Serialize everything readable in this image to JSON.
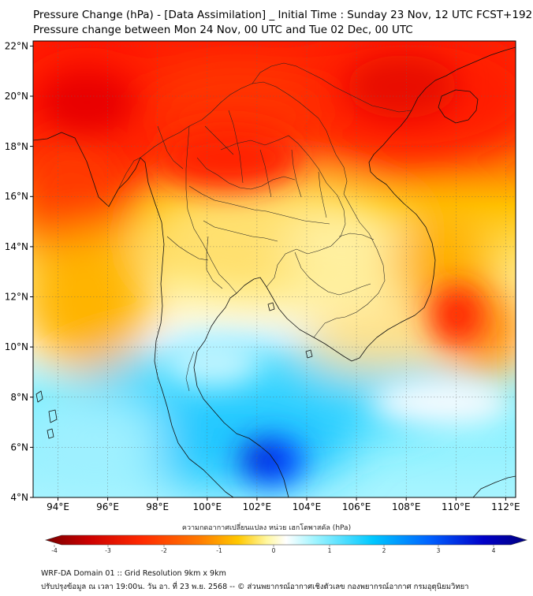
{
  "header": {
    "title": "Pressure Change (hPa) - [Data Assimilation] _ Initial Time : Sunday 23 Nov, 12 UTC FCST+192",
    "subtitle": "Pressure change between Mon 24 Nov, 00 UTC and Tue 02 Dec, 00 UTC"
  },
  "map": {
    "lat_ticks": [
      "22°N",
      "20°N",
      "18°N",
      "16°N",
      "14°N",
      "12°N",
      "10°N",
      "8°N",
      "6°N",
      "4°N"
    ],
    "lon_ticks": [
      "94°E",
      "96°E",
      "98°E",
      "100°E",
      "102°E",
      "104°E",
      "106°E",
      "108°E",
      "110°E",
      "112°E"
    ],
    "lat_range": [
      4,
      22.2
    ],
    "lon_range": [
      93,
      112.4
    ]
  },
  "colorbar": {
    "label": "ความกดอากาศเปลี่ยนแปลง หน่วย เฮกโตพาสคัล (hPa)",
    "ticks": [
      "-4",
      "-3",
      "-2",
      "-1",
      "0",
      "1",
      "2",
      "3",
      "4"
    ],
    "range": [
      -4.3,
      4.3
    ],
    "colors": [
      "#7a0000",
      "#cc0000",
      "#ff2a00",
      "#ff7b00",
      "#ffc800",
      "#fff7a0",
      "#ffffff",
      "#9ff4ff",
      "#00c8ff",
      "#0060ff",
      "#0000c8",
      "#000080"
    ]
  },
  "footer": {
    "line1": "WRF-DA Domain 01 :: Grid Resolution 9km x 9km",
    "line2": "ปรับปรุงข้อมูล ณ เวลา 19:00น. วัน อา. ที่ 23 พ.ย. 2568 -- © ส่วนพยากรณ์อากาศเชิงตัวเลข กองพยากรณ์อากาศ กรมอุตุนิยมวิทยา"
  }
}
